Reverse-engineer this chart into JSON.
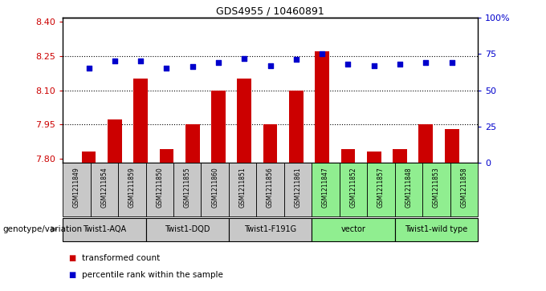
{
  "title": "GDS4955 / 10460891",
  "samples": [
    "GSM1211849",
    "GSM1211854",
    "GSM1211859",
    "GSM1211850",
    "GSM1211855",
    "GSM1211860",
    "GSM1211851",
    "GSM1211856",
    "GSM1211861",
    "GSM1211847",
    "GSM1211852",
    "GSM1211857",
    "GSM1211848",
    "GSM1211853",
    "GSM1211858"
  ],
  "transformed_count": [
    7.83,
    7.97,
    8.15,
    7.84,
    7.95,
    8.1,
    8.15,
    7.95,
    8.1,
    8.27,
    7.84,
    7.83,
    7.84,
    7.95,
    7.93
  ],
  "percentile_rank": [
    65,
    70,
    70,
    65,
    66,
    69,
    72,
    67,
    71,
    75,
    68,
    67,
    68,
    69,
    69
  ],
  "groups": [
    {
      "label": "Twist1-AQA",
      "indices": [
        0,
        1,
        2
      ],
      "color": "#c8c8c8"
    },
    {
      "label": "Twist1-DQD",
      "indices": [
        3,
        4,
        5
      ],
      "color": "#c8c8c8"
    },
    {
      "label": "Twist1-F191G",
      "indices": [
        6,
        7,
        8
      ],
      "color": "#c8c8c8"
    },
    {
      "label": "vector",
      "indices": [
        9,
        10,
        11
      ],
      "color": "#90ee90"
    },
    {
      "label": "Twist1-wild type",
      "indices": [
        12,
        13,
        14
      ],
      "color": "#90ee90"
    }
  ],
  "ylim_left": [
    7.78,
    8.42
  ],
  "ylim_right": [
    0,
    100
  ],
  "yticks_left": [
    7.8,
    7.95,
    8.1,
    8.25,
    8.4
  ],
  "yticks_right": [
    0,
    25,
    50,
    75,
    100
  ],
  "bar_color": "#cc0000",
  "dot_color": "#0000cc",
  "legend_items": [
    "transformed count",
    "percentile rank within the sample"
  ],
  "legend_colors": [
    "#cc0000",
    "#0000cc"
  ],
  "genotype_label": "genotype/variation",
  "grid_yticks": [
    7.95,
    8.1,
    8.25
  ],
  "fig_width": 6.8,
  "fig_height": 3.63,
  "dpi": 100
}
